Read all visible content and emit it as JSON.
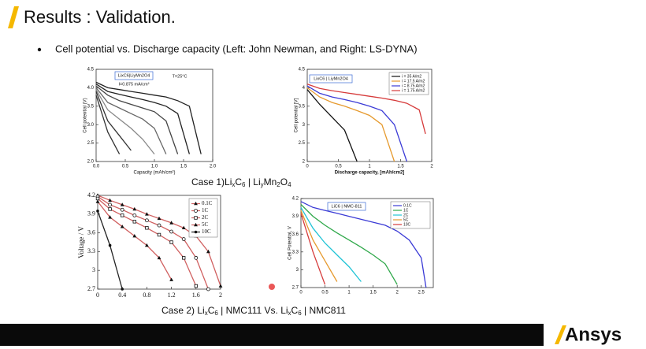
{
  "header": {
    "title": "Results : Validation."
  },
  "bullet": "Cell potential vs. Discharge capacity (Left: John Newman, and Right: LS-DYNA)",
  "case1": {
    "label": "Case 1)",
    "parts": [
      "Li",
      "x",
      "C",
      "6",
      " | Li",
      "y",
      "Mn",
      "2",
      "O",
      "4"
    ]
  },
  "case2": {
    "parts": [
      "Case 2) Li",
      "x",
      "C",
      "6",
      " | NMC111 Vs. Li",
      "x",
      "C",
      "6",
      " | NMC811"
    ]
  },
  "logo": "Ansys",
  "chart_data": [
    {
      "type": "line",
      "title": "LixC6|LiyMn2O4",
      "annotations": [
        "T=25°C",
        "I=0.875 mA/cm²"
      ],
      "xlabel": "Capacity (mAh/cm²)",
      "ylabel": "Cell potential (V)",
      "x": [
        0,
        0.2,
        0.4,
        0.6,
        0.8,
        1.0,
        1.2,
        1.4,
        1.6,
        1.8
      ],
      "series": [
        {
          "color": "#222222",
          "values": [
            4.15,
            4.0,
            3.95,
            3.9,
            3.85,
            3.8,
            3.75,
            3.65,
            3.5,
            2.2
          ]
        },
        {
          "color": "#222222",
          "values": [
            4.1,
            3.9,
            3.82,
            3.75,
            3.68,
            3.6,
            3.5,
            3.3,
            2.2,
            null
          ]
        },
        {
          "color": "#444444",
          "values": [
            4.05,
            3.8,
            3.65,
            3.55,
            3.45,
            3.35,
            3.1,
            2.2,
            null,
            null
          ]
        },
        {
          "color": "#666666",
          "values": [
            4.0,
            3.6,
            3.45,
            3.3,
            3.15,
            2.9,
            2.2,
            null,
            null,
            null
          ]
        },
        {
          "color": "#888888",
          "values": [
            3.95,
            3.4,
            3.15,
            2.9,
            2.6,
            2.2,
            null,
            null,
            null,
            null
          ]
        },
        {
          "color": "#333333",
          "values": [
            3.9,
            3.1,
            2.7,
            2.3,
            null,
            null,
            null,
            null,
            null,
            null
          ]
        },
        {
          "color": "#333333",
          "values": [
            3.8,
            2.8,
            2.2,
            null,
            null,
            null,
            null,
            null,
            null,
            null
          ]
        }
      ],
      "xlim": [
        0,
        2
      ],
      "ylim": [
        2,
        4.5
      ],
      "xticks": [
        {
          "value": 0,
          "label": "0.0"
        },
        0.5,
        {
          "value": 1,
          "label": "1.0"
        },
        1.5,
        {
          "value": 2,
          "label": "2.0"
        }
      ],
      "yticks": [
        {
          "value": 2,
          "label": "2.0"
        },
        2.5,
        {
          "value": 3,
          "label": "3.0"
        },
        3.5,
        {
          "value": 4,
          "label": "4.0"
        },
        4.5
      ]
    },
    {
      "type": "line",
      "title": "LixC6 | LiyMn2O4",
      "xlabel": "Discharge capacity, [mAh/cm2]",
      "ylabel": "Cell potential [V]",
      "x": [
        0,
        0.2,
        0.4,
        0.6,
        0.8,
        1.0,
        1.2,
        1.4,
        1.6,
        1.8,
        1.9
      ],
      "series": [
        {
          "name": "i = 35 A/m2",
          "color": "#111111",
          "values": [
            3.95,
            3.55,
            3.2,
            2.85,
            2.0,
            null,
            null,
            null,
            null,
            null,
            null
          ]
        },
        {
          "name": "i = 17.5 A/m2",
          "color": "#e69a2e",
          "values": [
            4.0,
            3.75,
            3.6,
            3.5,
            3.38,
            3.25,
            3.0,
            2.0,
            null,
            null,
            null
          ]
        },
        {
          "name": "i = 8.75 A/m2",
          "color": "#3b3bd6",
          "values": [
            4.05,
            3.85,
            3.75,
            3.68,
            3.6,
            3.5,
            3.38,
            3.0,
            2.0,
            null,
            null
          ]
        },
        {
          "name": "i = 1.75 A/m2",
          "color": "#d63b3b",
          "values": [
            4.1,
            3.98,
            3.92,
            3.87,
            3.82,
            3.77,
            3.72,
            3.66,
            3.58,
            3.4,
            2.75
          ]
        }
      ],
      "legend": "top-right",
      "xlim": [
        0,
        2
      ],
      "ylim": [
        2,
        4.5
      ],
      "xticks": [
        0,
        0.5,
        1,
        1.5,
        2
      ],
      "yticks": [
        2,
        2.5,
        3,
        3.5,
        4,
        4.5
      ]
    },
    {
      "type": "line",
      "ylabel": "Voltage / V",
      "x": [
        0,
        0.2,
        0.4,
        0.6,
        0.8,
        1.0,
        1.2,
        1.4,
        1.6,
        1.8,
        2.0
      ],
      "series": [
        {
          "name": "0.1C",
          "color": "#d06060",
          "marker": "triangle",
          "values": [
            4.2,
            4.12,
            4.05,
            3.98,
            3.9,
            3.83,
            3.76,
            3.68,
            3.55,
            3.3,
            2.75
          ]
        },
        {
          "name": "1C",
          "color": "#d06060",
          "marker": "circle",
          "values": [
            4.18,
            4.05,
            3.97,
            3.88,
            3.8,
            3.72,
            3.62,
            3.5,
            3.2,
            2.7,
            null
          ]
        },
        {
          "name": "2C",
          "color": "#d06060",
          "marker": "square",
          "values": [
            4.15,
            3.98,
            3.88,
            3.78,
            3.68,
            3.57,
            3.45,
            3.2,
            2.75,
            null,
            null
          ]
        },
        {
          "name": "5C",
          "color": "#d06060",
          "marker": "triangle",
          "values": [
            4.1,
            3.85,
            3.7,
            3.55,
            3.4,
            3.2,
            2.85,
            null,
            null,
            null,
            null
          ]
        },
        {
          "name": "10C",
          "color": "#222222",
          "marker": "dot",
          "values": [
            3.95,
            3.4,
            2.7,
            null,
            null,
            null,
            null,
            null,
            null,
            null,
            null
          ]
        }
      ],
      "legend": "top-right",
      "xlim": [
        0,
        2
      ],
      "ylim": [
        2.7,
        4.2
      ],
      "xticks": [
        0,
        0.4,
        0.8,
        1.2,
        1.6,
        2
      ],
      "yticks": [
        2.7,
        3,
        3.3,
        3.6,
        3.9,
        4.2
      ]
    },
    {
      "type": "line",
      "title": "LiC6 | NMC-811",
      "ylabel": "Cell Potential, V",
      "x": [
        0,
        0.25,
        0.5,
        0.75,
        1.0,
        1.25,
        1.5,
        1.75,
        2.0,
        2.25,
        2.5,
        2.6
      ],
      "series": [
        {
          "name": "0.1C",
          "color": "#3b3bd6",
          "values": [
            4.15,
            4.05,
            4.0,
            3.95,
            3.9,
            3.85,
            3.8,
            3.75,
            3.65,
            3.5,
            3.2,
            2.7
          ]
        },
        {
          "name": "1C",
          "color": "#2fa84a",
          "values": [
            4.1,
            3.9,
            3.75,
            3.62,
            3.5,
            3.38,
            3.25,
            3.1,
            2.75,
            null,
            null,
            null
          ]
        },
        {
          "name": "2C",
          "color": "#21c4d6",
          "values": [
            4.05,
            3.7,
            3.45,
            3.25,
            3.05,
            2.8,
            null,
            null,
            null,
            null,
            null,
            null
          ]
        },
        {
          "name": "5C",
          "color": "#e69a2e",
          "values": [
            4.0,
            3.5,
            3.15,
            2.8,
            null,
            null,
            null,
            null,
            null,
            null,
            null,
            null
          ]
        },
        {
          "name": "10C",
          "color": "#d63b3b",
          "values": [
            3.95,
            3.3,
            2.75,
            null,
            null,
            null,
            null,
            null,
            null,
            null,
            null,
            null
          ]
        }
      ],
      "legend": "top-right",
      "xlim": [
        0,
        2.75
      ],
      "ylim": [
        2.7,
        4.2
      ],
      "xticks": [
        0,
        0.5,
        1,
        1.5,
        2,
        2.5
      ],
      "yticks": [
        2.7,
        3,
        3.3,
        3.6,
        3.9,
        4.2
      ]
    }
  ]
}
